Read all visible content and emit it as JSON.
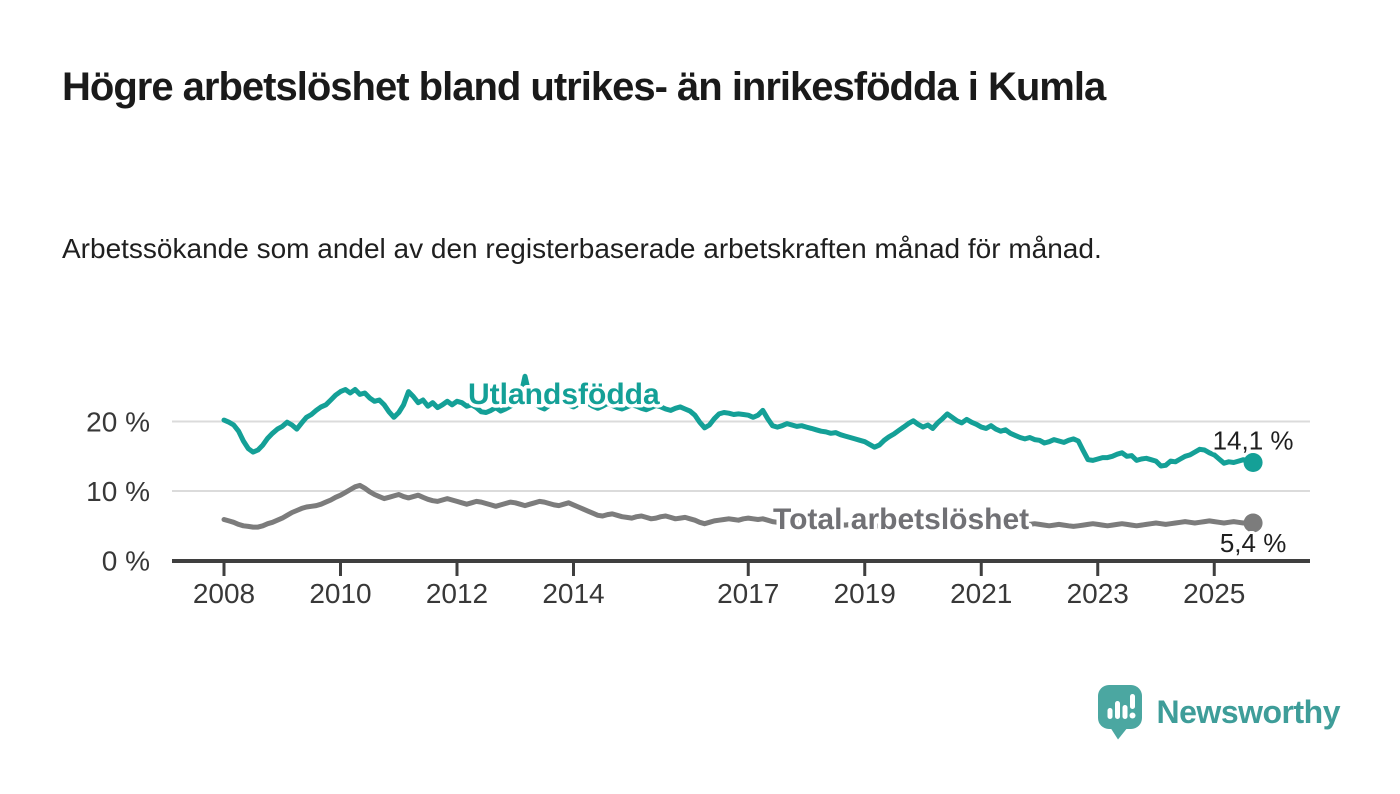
{
  "title": "Högre arbetslöshet bland utrikes- än inrikesfödda i Kumla",
  "subtitle": "Arbetssökande som andel av den registerbaserade arbetskraften månad för månad.",
  "branding": {
    "logo_text": "Newsworthy",
    "logo_icon": "chart-speech-bubble-icon"
  },
  "colors": {
    "series_foreign_born": "#14a097",
    "series_total": "#7c7c7c",
    "total_label_text": "#717175",
    "gridline": "#dbdbdb",
    "axis": "#3f3f3f",
    "tick_text": "#383838",
    "annotation_text": "#1f1f1f",
    "logo_bubble": "#4ba7a1",
    "logo_text": "#3e9d99",
    "title_text": "#1a1a1a"
  },
  "chart_data": {
    "type": "line",
    "title": "Högre arbetslöshet bland utrikes- än inrikesfödda i Kumla",
    "subtitle": "Arbetssökande som andel av den registerbaserade arbetskraften månad för månad.",
    "frequency": "monthly",
    "x_start": "2008-01",
    "x_end": "2025-09",
    "ylim": [
      0,
      27
    ],
    "grid": "horizontal-only",
    "legend_position": "inline-labels",
    "y_ticks": [
      {
        "value": 0,
        "label": "0 %"
      },
      {
        "value": 10,
        "label": "10 %"
      },
      {
        "value": 20,
        "label": "20 %"
      }
    ],
    "x_ticks": [
      2008,
      2010,
      2012,
      2014,
      2017,
      2019,
      2021,
      2023,
      2025
    ],
    "series": [
      {
        "name": "Utlandsfödda",
        "color": "#14a097",
        "end_value": 14.1,
        "end_label": "14,1 %",
        "values": [
          20.2,
          19.9,
          19.5,
          18.6,
          17.2,
          16.1,
          15.6,
          15.9,
          16.6,
          17.6,
          18.3,
          18.9,
          19.3,
          19.9,
          19.5,
          18.9,
          19.8,
          20.6,
          21.0,
          21.6,
          22.1,
          22.4,
          23.1,
          23.8,
          24.3,
          24.6,
          24.1,
          24.6,
          23.9,
          24.1,
          23.4,
          22.9,
          23.1,
          22.4,
          21.4,
          20.6,
          21.3,
          22.4,
          24.3,
          23.6,
          22.7,
          23.1,
          22.2,
          22.7,
          22.0,
          22.4,
          22.9,
          22.4,
          22.9,
          22.7,
          22.2,
          22.4,
          22.0,
          21.4,
          21.3,
          21.6,
          22.0,
          21.5,
          21.8,
          22.2,
          22.6,
          23.3,
          26.5,
          23.5,
          22.6,
          22.1,
          21.8,
          22.3,
          22.8,
          23.2,
          22.8,
          22.4,
          22.1,
          22.5,
          22.9,
          22.6,
          22.2,
          21.9,
          22.2,
          22.6,
          22.3,
          22.0,
          21.8,
          22.1,
          22.4,
          22.2,
          21.9,
          21.7,
          22.0,
          22.3,
          22.1,
          21.8,
          21.6,
          21.9,
          22.1,
          21.8,
          21.5,
          20.9,
          19.9,
          19.1,
          19.5,
          20.4,
          21.1,
          21.3,
          21.2,
          21.0,
          21.1,
          21.0,
          20.9,
          20.6,
          20.9,
          21.6,
          20.4,
          19.4,
          19.2,
          19.4,
          19.7,
          19.5,
          19.3,
          19.4,
          19.2,
          19.0,
          18.8,
          18.6,
          18.5,
          18.3,
          18.4,
          18.1,
          17.9,
          17.7,
          17.5,
          17.3,
          17.1,
          16.7,
          16.3,
          16.6,
          17.3,
          17.8,
          18.2,
          18.7,
          19.2,
          19.7,
          20.1,
          19.6,
          19.2,
          19.5,
          19.0,
          19.8,
          20.4,
          21.1,
          20.6,
          20.1,
          19.8,
          20.3,
          19.9,
          19.6,
          19.2,
          19.0,
          19.4,
          18.9,
          18.6,
          18.8,
          18.3,
          18.0,
          17.7,
          17.5,
          17.7,
          17.4,
          17.3,
          16.9,
          17.1,
          17.4,
          17.2,
          17.0,
          17.3,
          17.5,
          17.2,
          15.8,
          14.5,
          14.4,
          14.6,
          14.8,
          14.8,
          15.0,
          15.3,
          15.5,
          15.0,
          15.1,
          14.4,
          14.6,
          14.7,
          14.5,
          14.3,
          13.6,
          13.7,
          14.3,
          14.2,
          14.6,
          15.0,
          15.2,
          15.6,
          16.0,
          15.9,
          15.5,
          15.2,
          14.6,
          14.0,
          14.2,
          14.1,
          14.3,
          14.5,
          14.3,
          14.1
        ]
      },
      {
        "name": "Total arbetslöshet",
        "color": "#7c7c7c",
        "end_value": 5.4,
        "end_label": "5,4 %",
        "values": [
          5.9,
          5.7,
          5.5,
          5.2,
          5.0,
          4.9,
          4.8,
          4.8,
          5.0,
          5.3,
          5.5,
          5.8,
          6.1,
          6.5,
          6.9,
          7.2,
          7.5,
          7.7,
          7.8,
          7.9,
          8.1,
          8.4,
          8.7,
          9.1,
          9.4,
          9.8,
          10.2,
          10.6,
          10.8,
          10.4,
          9.9,
          9.5,
          9.2,
          8.9,
          9.1,
          9.3,
          9.5,
          9.2,
          9.0,
          9.2,
          9.4,
          9.1,
          8.8,
          8.6,
          8.5,
          8.7,
          8.9,
          8.7,
          8.5,
          8.3,
          8.1,
          8.3,
          8.5,
          8.4,
          8.2,
          8.0,
          7.8,
          8.0,
          8.2,
          8.4,
          8.3,
          8.1,
          7.9,
          8.1,
          8.3,
          8.5,
          8.4,
          8.2,
          8.0,
          7.9,
          8.1,
          8.3,
          8.0,
          7.7,
          7.4,
          7.1,
          6.8,
          6.5,
          6.4,
          6.6,
          6.7,
          6.5,
          6.3,
          6.2,
          6.1,
          6.3,
          6.4,
          6.2,
          6.0,
          6.1,
          6.3,
          6.4,
          6.2,
          6.0,
          6.1,
          6.2,
          6.0,
          5.8,
          5.5,
          5.3,
          5.5,
          5.7,
          5.8,
          5.9,
          6.0,
          5.9,
          5.8,
          6.0,
          6.1,
          6.0,
          5.9,
          6.0,
          5.8,
          5.6,
          5.5,
          5.6,
          5.7,
          5.6,
          5.5,
          5.6,
          5.5,
          5.4,
          5.3,
          5.4,
          5.5,
          5.4,
          5.3,
          5.2,
          5.1,
          5.2,
          5.3,
          5.2,
          5.1,
          5.0,
          4.9,
          5.0,
          5.2,
          5.4,
          5.6,
          5.8,
          6.0,
          6.2,
          6.3,
          6.2,
          6.0,
          5.9,
          6.1,
          6.4,
          6.7,
          6.9,
          6.8,
          6.6,
          6.4,
          6.3,
          6.2,
          6.1,
          6.0,
          5.9,
          5.8,
          5.7,
          5.6,
          5.7,
          5.6,
          5.5,
          5.4,
          5.3,
          5.2,
          5.3,
          5.2,
          5.1,
          5.0,
          5.1,
          5.2,
          5.1,
          5.0,
          4.9,
          5.0,
          5.1,
          5.2,
          5.3,
          5.2,
          5.1,
          5.0,
          5.1,
          5.2,
          5.3,
          5.2,
          5.1,
          5.0,
          5.1,
          5.2,
          5.3,
          5.4,
          5.3,
          5.2,
          5.3,
          5.4,
          5.5,
          5.6,
          5.5,
          5.4,
          5.5,
          5.6,
          5.7,
          5.6,
          5.5,
          5.4,
          5.5,
          5.6,
          5.5,
          5.4,
          5.5,
          5.4
        ]
      }
    ]
  }
}
